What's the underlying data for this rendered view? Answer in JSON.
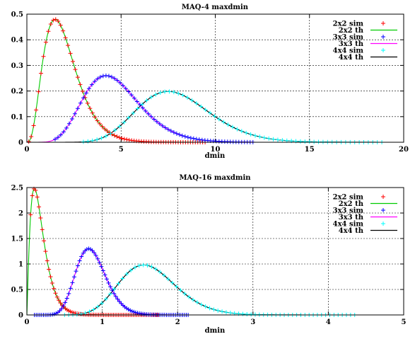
{
  "chart_data": [
    {
      "type": "line",
      "title": "MAQ-4 maxdmin",
      "xlabel": "dmin",
      "ylabel": "",
      "xlim": [
        0,
        20
      ],
      "ylim": [
        0,
        0.5
      ],
      "x_ticks": [
        "0",
        "5",
        "10",
        "15",
        "20"
      ],
      "y_ticks": [
        "0",
        "0.1",
        "0.2",
        "0.3",
        "0.4",
        "0.5"
      ],
      "grid": true,
      "legend_position": "top-right",
      "legend": [
        "2x2 sim",
        "2x2 th",
        "3x3 sim",
        "3x3 th",
        "4x4 sim",
        "4x4 th"
      ],
      "series": [
        {
          "name": "2x2 sim",
          "style": "points",
          "marker": "+",
          "color": "#ff0000",
          "dist": {
            "k": 4,
            "scale": 1.5,
            "peak": 0.48
          },
          "x_range": [
            0.1,
            9.5
          ],
          "step": 0.13
        },
        {
          "name": "2x2 th",
          "style": "line",
          "color": "#00cc00",
          "dist": {
            "k": 4,
            "scale": 1.5,
            "peak": 0.48
          },
          "x_range": [
            0,
            9.5
          ]
        },
        {
          "name": "3x3 sim",
          "style": "points",
          "marker": "+",
          "color": "#0000ff",
          "dist": {
            "k": 9,
            "scale": 4.2,
            "peak": 0.26
          },
          "x_range": [
            1.5,
            12.0
          ],
          "step": 0.15
        },
        {
          "name": "3x3 th",
          "style": "line",
          "color": "#ff00ff",
          "dist": {
            "k": 9,
            "scale": 4.2,
            "peak": 0.26
          },
          "x_range": [
            0.5,
            12.0
          ]
        },
        {
          "name": "4x4 sim",
          "style": "points",
          "marker": "+",
          "color": "#00ffff",
          "dist": {
            "k": 16,
            "scale": 7.5,
            "peak": 0.198
          },
          "x_range": [
            3.0,
            19.0
          ],
          "step": 0.24
        },
        {
          "name": "4x4 th",
          "style": "line",
          "color": "#000000",
          "dist": {
            "k": 16,
            "scale": 7.5,
            "peak": 0.198
          },
          "x_range": [
            2.0,
            19.0
          ]
        }
      ]
    },
    {
      "type": "line",
      "title": "MAQ-16 maxdmin",
      "xlabel": "dmin",
      "ylabel": "",
      "xlim": [
        0,
        5
      ],
      "ylim": [
        0,
        2.5
      ],
      "x_ticks": [
        "0",
        "1",
        "2",
        "3",
        "4",
        "5"
      ],
      "y_ticks": [
        "0",
        "0.5",
        "1",
        "1.5",
        "2",
        "2.5"
      ],
      "grid": true,
      "legend_position": "top-right",
      "legend": [
        "2x2 sim",
        "2x2 th",
        "3x3 sim",
        "3x3 th",
        "4x4 sim",
        "4x4 th"
      ],
      "series": [
        {
          "name": "2x2 sim",
          "style": "points",
          "marker": "+",
          "color": "#ff0000",
          "dist": {
            "k": 2.2,
            "scale": 0.1,
            "peak": 2.48
          },
          "x_range": [
            0.05,
            1.75
          ],
          "step": 0.022
        },
        {
          "name": "2x2 th",
          "style": "line",
          "color": "#00cc00",
          "dist": {
            "k": 2.2,
            "scale": 0.1,
            "peak": 2.48
          },
          "x_range": [
            0,
            1.75
          ]
        },
        {
          "name": "3x3 sim",
          "style": "points",
          "marker": "+",
          "color": "#0000ff",
          "dist": {
            "k": 18,
            "scale": 0.82,
            "peak": 1.3
          },
          "x_range": [
            0.1,
            2.15
          ],
          "step": 0.024
        },
        {
          "name": "3x3 th",
          "style": "line",
          "color": "#ff00ff",
          "dist": {
            "k": 18,
            "scale": 0.82,
            "peak": 1.3
          },
          "x_range": [
            0.1,
            2.15
          ]
        },
        {
          "name": "4x4 sim",
          "style": "points",
          "marker": "+",
          "color": "#00ffff",
          "dist": {
            "k": 18,
            "scale": 1.55,
            "peak": 0.98
          },
          "x_range": [
            0.5,
            4.4
          ],
          "step": 0.055
        },
        {
          "name": "4x4 th",
          "style": "line",
          "color": "#000000",
          "dist": {
            "k": 18,
            "scale": 1.55,
            "peak": 0.98
          },
          "x_range": [
            0.5,
            3.8
          ]
        }
      ]
    }
  ]
}
